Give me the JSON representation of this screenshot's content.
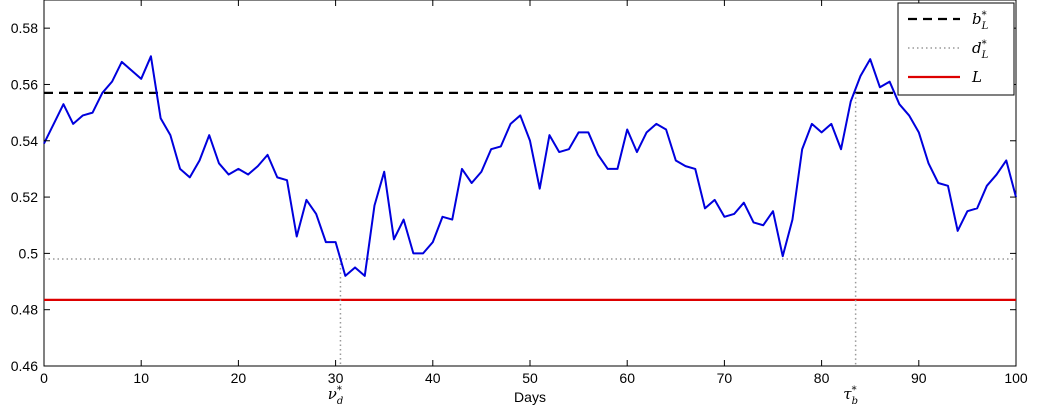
{
  "chart_data": {
    "type": "line",
    "xlabel": "Days",
    "ylabel": "",
    "xlim": [
      0,
      100
    ],
    "ylim": [
      0.46,
      0.59
    ],
    "x_ticks": [
      0,
      10,
      20,
      30,
      40,
      50,
      60,
      70,
      80,
      90,
      100
    ],
    "y_ticks": [
      0.46,
      0.48,
      0.5,
      0.52,
      0.54,
      0.56,
      0.58
    ],
    "y_tick_labels": [
      "0.46",
      "0.48",
      "0.5",
      "0.52",
      "0.54",
      "0.56",
      "0.58"
    ],
    "grid": false,
    "legend_position": "top-right",
    "series": [
      {
        "name": "",
        "color": "#0000dd",
        "style": "solid",
        "x": [
          0,
          1,
          2,
          3,
          4,
          5,
          6,
          7,
          8,
          9,
          10,
          11,
          12,
          13,
          14,
          15,
          16,
          17,
          18,
          19,
          20,
          21,
          22,
          23,
          24,
          25,
          26,
          27,
          28,
          29,
          30,
          31,
          32,
          33,
          34,
          35,
          36,
          37,
          38,
          39,
          40,
          41,
          42,
          43,
          44,
          45,
          46,
          47,
          48,
          49,
          50,
          51,
          52,
          53,
          54,
          55,
          56,
          57,
          58,
          59,
          60,
          61,
          62,
          63,
          64,
          65,
          66,
          67,
          68,
          69,
          70,
          71,
          72,
          73,
          74,
          75,
          76,
          77,
          78,
          79,
          80,
          81,
          82,
          83,
          84,
          85,
          86,
          87,
          88,
          89,
          90,
          91,
          92,
          93,
          94,
          95,
          96,
          97,
          98,
          99,
          100
        ],
        "values": [
          0.539,
          0.546,
          0.553,
          0.546,
          0.549,
          0.55,
          0.557,
          0.561,
          0.568,
          0.565,
          0.562,
          0.57,
          0.548,
          0.542,
          0.53,
          0.527,
          0.533,
          0.542,
          0.532,
          0.528,
          0.53,
          0.528,
          0.531,
          0.535,
          0.527,
          0.526,
          0.506,
          0.519,
          0.514,
          0.504,
          0.504,
          0.492,
          0.495,
          0.492,
          0.517,
          0.529,
          0.505,
          0.512,
          0.5,
          0.5,
          0.504,
          0.513,
          0.512,
          0.53,
          0.525,
          0.529,
          0.537,
          0.538,
          0.546,
          0.549,
          0.54,
          0.523,
          0.542,
          0.536,
          0.537,
          0.543,
          0.543,
          0.535,
          0.53,
          0.53,
          0.544,
          0.536,
          0.543,
          0.546,
          0.544,
          0.533,
          0.531,
          0.53,
          0.516,
          0.519,
          0.513,
          0.514,
          0.518,
          0.511,
          0.51,
          0.515,
          0.499,
          0.512,
          0.537,
          0.546,
          0.543,
          0.546,
          0.537,
          0.554,
          0.563,
          0.569,
          0.559,
          0.561,
          0.553,
          0.549,
          0.543,
          0.532,
          0.525,
          0.524,
          0.508,
          0.515,
          0.516,
          0.524,
          0.528,
          0.533,
          0.52
        ]
      },
      {
        "name": "b_L^*",
        "color": "#000000",
        "style": "dashed",
        "y": 0.557
      },
      {
        "name": "d_L^*",
        "color": "#999999",
        "style": "dotted",
        "y": 0.498
      },
      {
        "name": "L",
        "color": "#dd0000",
        "style": "solid",
        "y": 0.4835
      }
    ],
    "vertical_markers": [
      {
        "x": 30.5,
        "y_top": 0.498,
        "color": "#999999",
        "style": "dotted"
      },
      {
        "x": 83.5,
        "y_top": 0.557,
        "color": "#999999",
        "style": "dotted"
      }
    ],
    "x_annotations": [
      {
        "x": 30.5,
        "base": "ν",
        "sup": "*",
        "sub": "d"
      },
      {
        "x": 83.5,
        "base": "τ",
        "sup": "*",
        "sub": "b"
      }
    ],
    "legend": [
      {
        "base": "b",
        "sup": "*",
        "sub": "L",
        "color": "#000000",
        "style": "dashed"
      },
      {
        "base": "d",
        "sup": "*",
        "sub": "L",
        "color": "#999999",
        "style": "dotted"
      },
      {
        "base": "L",
        "sup": "",
        "sub": "",
        "color": "#dd0000",
        "style": "solid"
      }
    ]
  }
}
